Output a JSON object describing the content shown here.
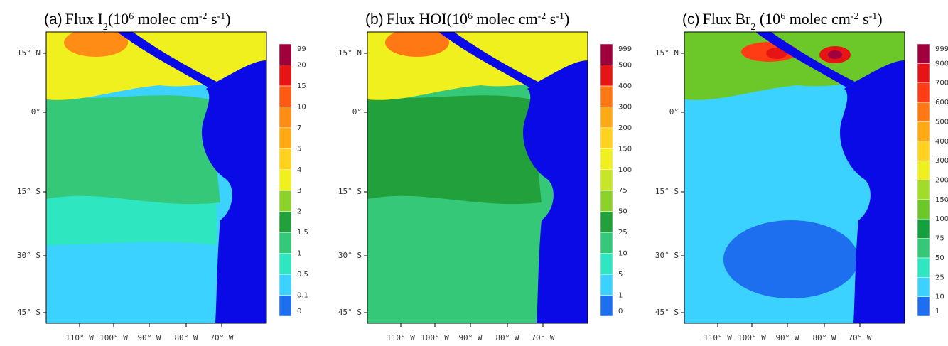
{
  "map": {
    "lat_labels": [
      "15° N",
      "0°",
      "15° S",
      "30° S",
      "45° S"
    ],
    "lon_labels": [
      "110° W",
      "100° W",
      "90° W",
      "80° W",
      "70° W"
    ],
    "land_color": "#0a0ae6"
  },
  "panels": [
    {
      "label": "(a)",
      "title": [
        {
          "text": "Flux I",
          "style": "normal"
        },
        {
          "text": "2",
          "style": "sub"
        },
        {
          "text": "(10",
          "style": "normal"
        },
        {
          "text": "6",
          "style": "sup"
        },
        {
          "text": " molec cm",
          "style": "normal"
        },
        {
          "text": "-2",
          "style": "sup"
        },
        {
          "text": " s",
          "style": "normal"
        },
        {
          "text": "-1",
          "style": "sup"
        },
        {
          "text": ")",
          "style": "normal"
        }
      ],
      "levels": [
        0,
        0.1,
        0.5,
        1,
        1.5,
        2,
        3,
        4,
        5,
        7,
        10,
        15,
        20,
        99
      ],
      "colors": [
        "#1e6ef0",
        "#3cd2ff",
        "#2ee6c0",
        "#34c878",
        "#22a03c",
        "#8cd22a",
        "#f0f01e",
        "#ffd21e",
        "#ffaa14",
        "#ff8c14",
        "#ff5a14",
        "#e61414",
        "#a0003c"
      ]
    },
    {
      "label": "(b)",
      "title": [
        {
          "text": "Flux HOI",
          "style": "normal"
        },
        {
          "text": "(10",
          "style": "normal"
        },
        {
          "text": "6",
          "style": "sup"
        },
        {
          "text": " molec cm",
          "style": "normal"
        },
        {
          "text": "-2",
          "style": "sup"
        },
        {
          "text": " s",
          "style": "normal"
        },
        {
          "text": "-1",
          "style": "sup"
        },
        {
          "text": ")",
          "style": "normal"
        }
      ],
      "levels": [
        0,
        1,
        5,
        10,
        25,
        50,
        75,
        100,
        150,
        200,
        300,
        400,
        500,
        999
      ],
      "colors": [
        "#1e6ef0",
        "#3cd2ff",
        "#2ee6c0",
        "#34c878",
        "#22a03c",
        "#8cd22a",
        "#c8e628",
        "#f0f01e",
        "#ffd21e",
        "#ffaa14",
        "#ff7814",
        "#e61414",
        "#a0003c"
      ]
    },
    {
      "label": "(c)",
      "title": [
        {
          "text": "Flux Br",
          "style": "normal"
        },
        {
          "text": "2",
          "style": "sub"
        },
        {
          "text": " (10",
          "style": "normal"
        },
        {
          "text": "6",
          "style": "sup"
        },
        {
          "text": " molec cm",
          "style": "normal"
        },
        {
          "text": "-2",
          "style": "sup"
        },
        {
          "text": " s",
          "style": "normal"
        },
        {
          "text": "-1",
          "style": "sup"
        },
        {
          "text": ")",
          "style": "normal"
        }
      ],
      "levels": [
        1,
        10,
        25,
        50,
        75,
        100,
        150,
        200,
        300,
        400,
        500,
        600,
        700,
        900,
        999
      ],
      "colors": [
        "#1e6ef0",
        "#3cd2ff",
        "#2ee6c0",
        "#34c878",
        "#14a03c",
        "#6cc828",
        "#a0dc28",
        "#f0f01e",
        "#ffd21e",
        "#ffaa14",
        "#ff7814",
        "#ff3c14",
        "#e61414",
        "#a0003c"
      ]
    }
  ]
}
